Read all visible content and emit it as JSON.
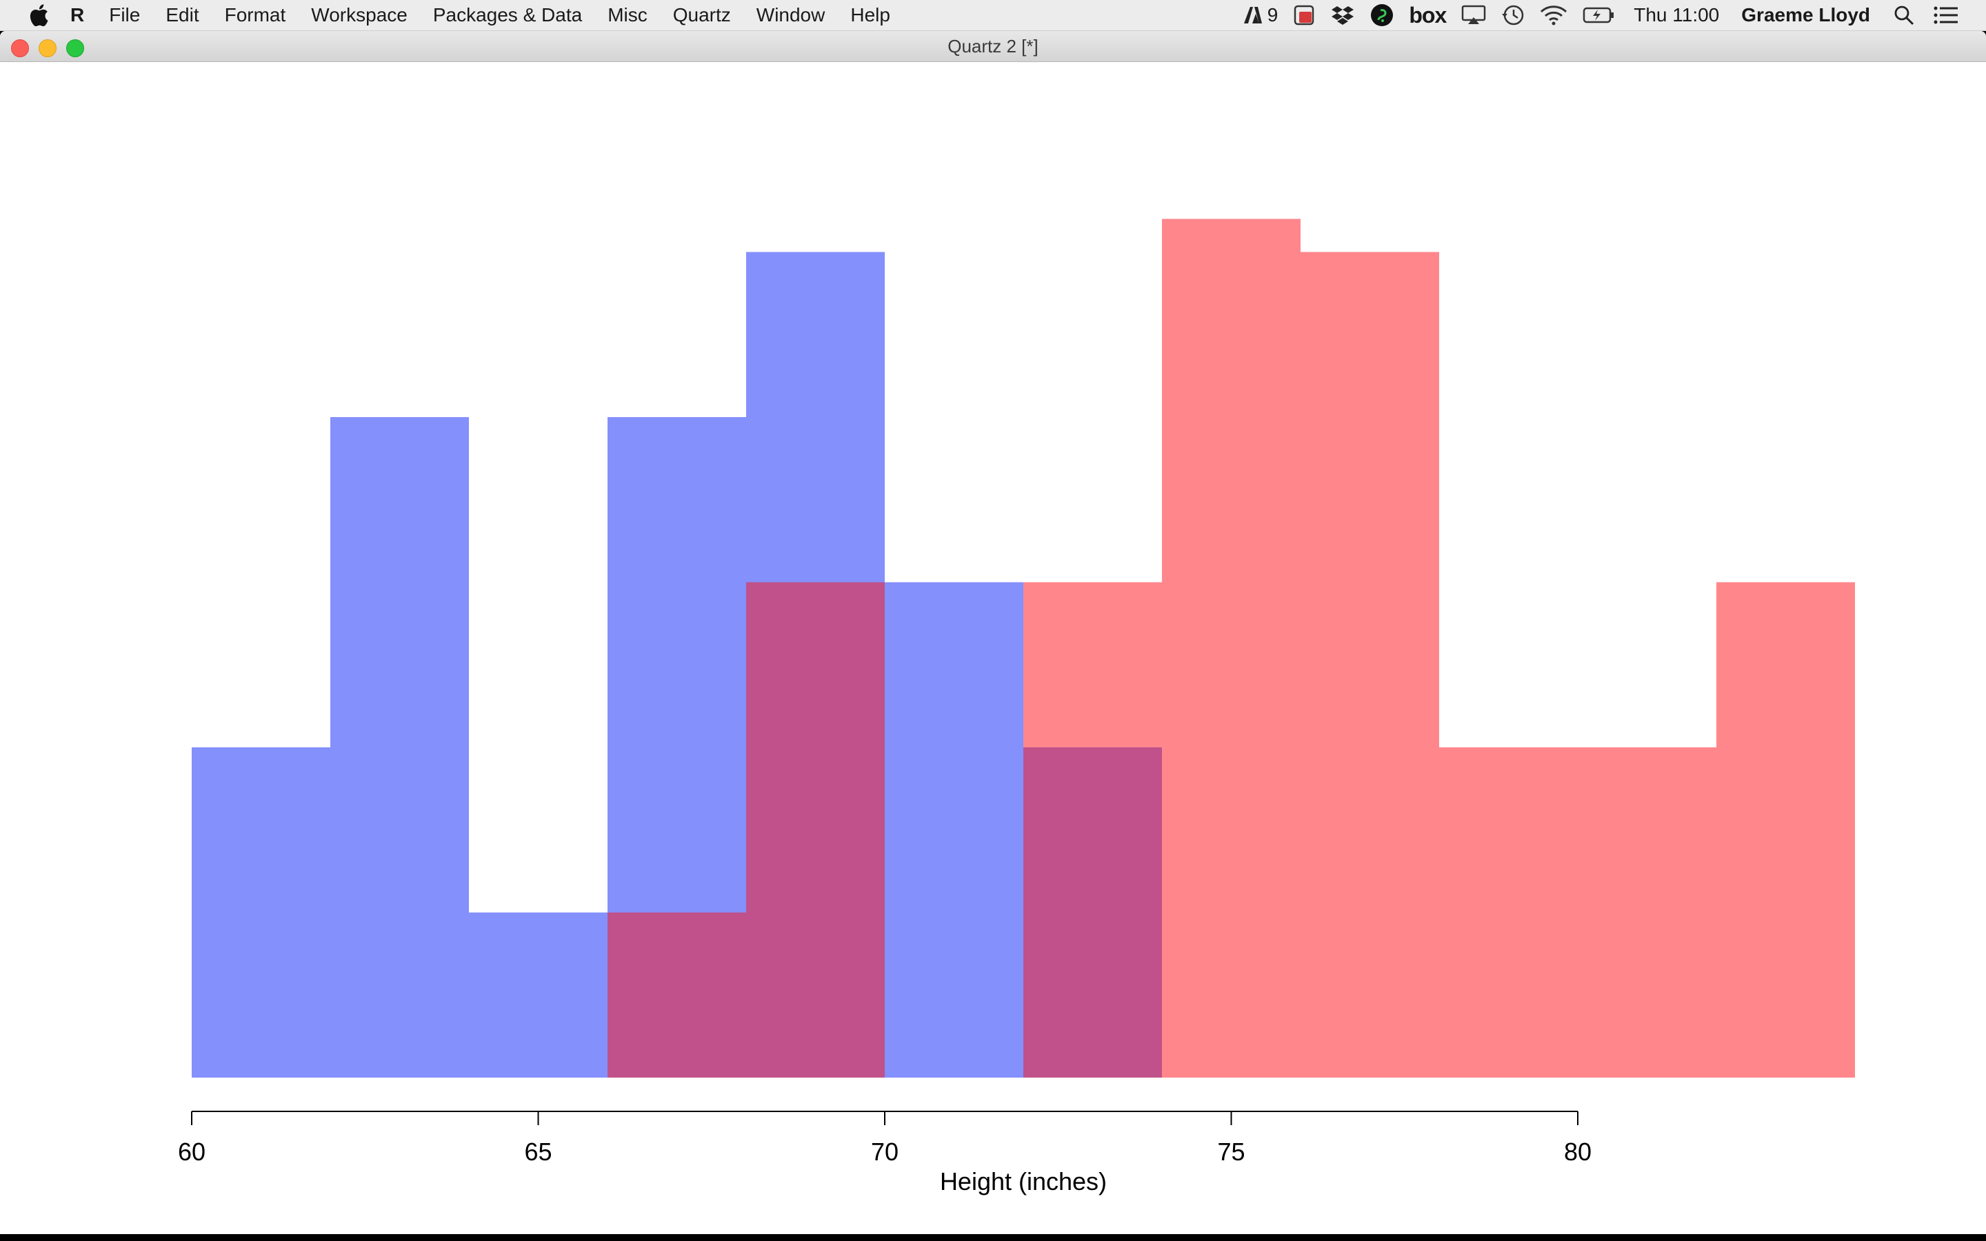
{
  "menubar": {
    "app_name": "R",
    "menus": [
      "File",
      "Edit",
      "Format",
      "Workspace",
      "Packages & Data",
      "Misc",
      "Quartz",
      "Window",
      "Help"
    ],
    "status": {
      "adobe_count": "9",
      "box_label": "box",
      "clock": "Thu 11:00",
      "user": "Graeme Lloyd"
    },
    "icons": [
      "apple-icon",
      "adobe-icon",
      "acrobat-icon",
      "dropbox-icon",
      "evernote-icon",
      "box-icon",
      "airplay-icon",
      "time-machine-icon",
      "wifi-icon",
      "battery-icon",
      "search-icon",
      "list-icon"
    ]
  },
  "window": {
    "title": "Quartz 2 [*]"
  },
  "chart_data": {
    "type": "histogram",
    "xlabel": "Height (inches)",
    "ylabel": "",
    "title": "",
    "xlim": [
      60,
      84
    ],
    "x_ticks": [
      60,
      65,
      70,
      75,
      80
    ],
    "bin_width": 2,
    "series": [
      {
        "color": "#8490fc",
        "bins": [
          {
            "x0": 60,
            "x1": 62,
            "count": 2
          },
          {
            "x0": 62,
            "x1": 64,
            "count": 4
          },
          {
            "x0": 64,
            "x1": 66,
            "count": 1
          },
          {
            "x0": 66,
            "x1": 68,
            "count": 4
          },
          {
            "x0": 68,
            "x1": 70,
            "count": 5
          },
          {
            "x0": 70,
            "x1": 72,
            "count": 3
          },
          {
            "x0": 72,
            "x1": 74,
            "count": 2
          }
        ]
      },
      {
        "color": "#ff878c",
        "bins": [
          {
            "x0": 66,
            "x1": 68,
            "count": 1
          },
          {
            "x0": 68,
            "x1": 70,
            "count": 3
          },
          {
            "x0": 72,
            "x1": 74,
            "count": 3
          },
          {
            "x0": 74,
            "x1": 76,
            "count": 5.2
          },
          {
            "x0": 76,
            "x1": 78,
            "count": 5
          },
          {
            "x0": 78,
            "x1": 80,
            "count": 2
          },
          {
            "x0": 80,
            "x1": 82,
            "count": 2
          },
          {
            "x0": 82,
            "x1": 84,
            "count": 3
          }
        ]
      }
    ],
    "overlap_color": "#c0518a"
  }
}
